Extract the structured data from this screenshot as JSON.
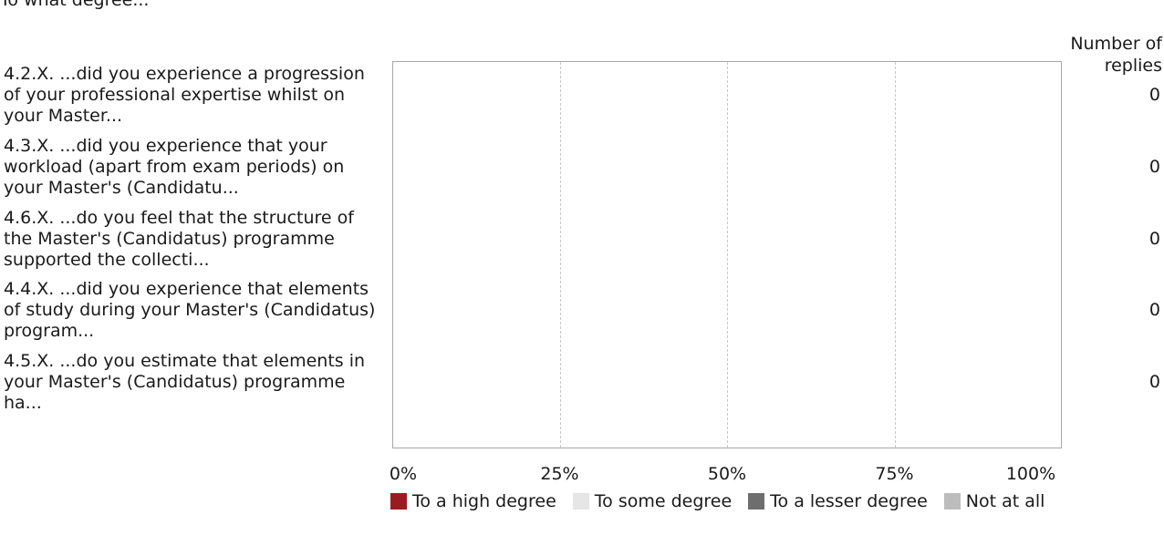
{
  "chart_data": {
    "type": "bar",
    "orientation": "horizontal",
    "stacked": true,
    "title": "To what degree...",
    "count_header": "Number of replies",
    "categories": [
      "4.2.X. ...did you experience a progression of your professional expertise whilst on your Master...",
      "4.3.X. ...did you experience that your workload (apart from exam periods) on your Master's (Candidatu...",
      "4.6.X. ...do you feel that the structure of the Master's (Candidatus) programme supported the collecti...",
      "4.4.X. ...did you experience that elements of study during your Master's (Candidatus) program...",
      "4.5.X. ...do you estimate that elements in your Master's (Candidatus) programme ha..."
    ],
    "counts": [
      0,
      0,
      0,
      0,
      0
    ],
    "series": [
      {
        "name": "To a high degree",
        "color": "#9b1c20",
        "values": [
          0,
          0,
          0,
          0,
          0
        ]
      },
      {
        "name": "To some degree",
        "color": "#e6e6e6",
        "values": [
          0,
          0,
          0,
          0,
          0
        ]
      },
      {
        "name": "To a lesser degree",
        "color": "#6e6e6e",
        "values": [
          0,
          0,
          0,
          0,
          0
        ]
      },
      {
        "name": "Not at all",
        "color": "#bdbdbd",
        "values": [
          0,
          0,
          0,
          0,
          0
        ]
      }
    ],
    "xticks": [
      "0%",
      "25%",
      "50%",
      "75%",
      "100%"
    ],
    "xlim": [
      0,
      100
    ],
    "grid": true,
    "legend_position": "bottom"
  }
}
